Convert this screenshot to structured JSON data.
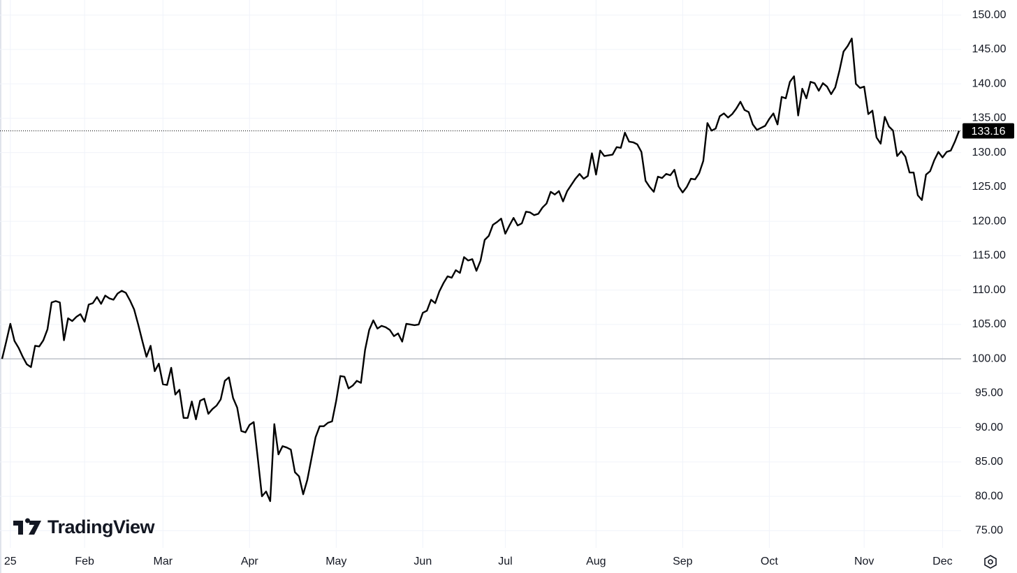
{
  "chart_data": {
    "type": "line",
    "watermark": "TradingView",
    "categories": [
      null,
      null,
      "25",
      null,
      null,
      null,
      null,
      null,
      null,
      null,
      null,
      null,
      null,
      null,
      null,
      null,
      null,
      null,
      null,
      null,
      "Feb",
      null,
      null,
      null,
      null,
      null,
      null,
      null,
      null,
      null,
      null,
      null,
      null,
      null,
      null,
      null,
      null,
      null,
      null,
      "Mar",
      null,
      null,
      null,
      null,
      null,
      null,
      null,
      null,
      null,
      null,
      null,
      null,
      null,
      null,
      null,
      null,
      null,
      null,
      null,
      null,
      "Apr",
      null,
      null,
      null,
      null,
      null,
      null,
      null,
      null,
      null,
      null,
      null,
      null,
      null,
      null,
      null,
      null,
      null,
      null,
      null,
      null,
      "May",
      null,
      null,
      null,
      null,
      null,
      null,
      null,
      null,
      null,
      null,
      null,
      null,
      null,
      null,
      null,
      null,
      null,
      null,
      null,
      null,
      "Jun",
      null,
      null,
      null,
      null,
      null,
      null,
      null,
      null,
      null,
      null,
      null,
      null,
      null,
      null,
      null,
      null,
      null,
      null,
      null,
      "Jul",
      null,
      null,
      null,
      null,
      null,
      null,
      null,
      null,
      null,
      null,
      null,
      null,
      null,
      null,
      null,
      null,
      null,
      null,
      null,
      null,
      null,
      "Aug",
      null,
      null,
      null,
      null,
      null,
      null,
      null,
      null,
      null,
      null,
      null,
      null,
      null,
      null,
      null,
      null,
      null,
      null,
      null,
      null,
      "Sep",
      null,
      null,
      null,
      null,
      null,
      null,
      null,
      null,
      null,
      null,
      null,
      null,
      null,
      null,
      null,
      null,
      null,
      null,
      null,
      null,
      "Oct",
      null,
      null,
      null,
      null,
      null,
      null,
      null,
      null,
      null,
      null,
      null,
      null,
      null,
      null,
      null,
      null,
      null,
      null,
      null,
      null,
      null,
      null,
      "Nov",
      null,
      null,
      null,
      null,
      null,
      null,
      null,
      null,
      null,
      null,
      null,
      null,
      null,
      null,
      null,
      null,
      null,
      null,
      "Dec",
      null,
      null,
      null,
      null
    ],
    "series": [
      {
        "color": "#000000",
        "values": [
          100,
          102.5,
          105.1,
          102.6,
          101.6,
          100.3,
          99.2,
          98.8,
          101.9,
          101.8,
          102.7,
          104.3,
          108.2,
          108.4,
          108.2,
          102.7,
          105.9,
          105.5,
          106.1,
          106.5,
          105.4,
          107.9,
          108.1,
          109,
          108,
          109.2,
          108.8,
          108.6,
          109.5,
          109.9,
          109.6,
          108.5,
          107.2,
          105,
          102.6,
          100.3,
          101.9,
          98.2,
          99.3,
          96.3,
          96.2,
          98.7,
          94.8,
          95.5,
          91.4,
          91.4,
          93.8,
          91.2,
          93.9,
          94.2,
          92,
          92.7,
          93.2,
          94.1,
          96.8,
          97.3,
          94.3,
          92.9,
          89.5,
          89.3,
          90.4,
          90.8,
          85.5,
          80,
          80.7,
          79.3,
          90.5,
          86.1,
          87.3,
          87.1,
          86.8,
          83.5,
          82.9,
          80.3,
          82.4,
          85.5,
          88.6,
          90.2,
          90.2,
          90.7,
          90.9,
          93.9,
          97.5,
          97.4,
          95.7,
          96.1,
          96.8,
          96.5,
          101.3,
          104.2,
          105.6,
          104.4,
          104.8,
          104.6,
          104.2,
          103.3,
          103.7,
          102.5,
          105.1,
          105,
          104.9,
          105,
          106.7,
          107,
          108.6,
          108.1,
          109.8,
          111,
          112,
          111.8,
          112.9,
          112.5,
          114.8,
          114.3,
          114.5,
          112.8,
          114.3,
          117.3,
          117.9,
          119.5,
          119.9,
          120.4,
          118.2,
          119.4,
          120.5,
          119.4,
          119.7,
          121.4,
          121.3,
          120.9,
          121.1,
          122,
          122.6,
          124.3,
          123.9,
          124.4,
          122.9,
          124.4,
          125.3,
          126.2,
          126.9,
          126.2,
          126.6,
          129.9,
          126.8,
          130.3,
          129.5,
          129.6,
          129.7,
          130.8,
          130.7,
          132.9,
          131.6,
          131.5,
          131.2,
          130.1,
          125.9,
          125,
          124.3,
          126.5,
          126.3,
          126.9,
          126.7,
          127.5,
          125.1,
          124.2,
          125,
          126.2,
          126.1,
          127,
          128.8,
          134.3,
          133.2,
          133.5,
          135.3,
          135.7,
          135.1,
          135.6,
          136.4,
          137.4,
          136.2,
          135.9,
          134.1,
          133.3,
          133.6,
          133.9,
          134.9,
          135.7,
          134.1,
          138.1,
          137.9,
          140.3,
          141.1,
          135.4,
          139.3,
          137.9,
          140.3,
          140.1,
          139,
          140.1,
          139.6,
          138.5,
          139.5,
          141.9,
          144.7,
          145.5,
          146.6,
          140,
          139.4,
          139.6,
          135.6,
          136.1,
          132.2,
          131.3,
          135.2,
          133.8,
          133.2,
          129.5,
          130.2,
          129.4,
          127.1,
          127.1,
          123.8,
          123.1,
          126.8,
          127.3,
          128.9,
          130.1,
          129.3,
          130.1,
          130.3,
          131.6,
          133.16
        ]
      }
    ],
    "baseline": 100,
    "ylim": [
      72.5,
      152.2
    ],
    "yticks": [
      {
        "value": 75,
        "label": "75.00"
      },
      {
        "value": 80,
        "label": "80.00"
      },
      {
        "value": 85,
        "label": "85.00"
      },
      {
        "value": 90,
        "label": "90.00"
      },
      {
        "value": 95,
        "label": "95.00"
      },
      {
        "value": 100,
        "label": "100.00"
      },
      {
        "value": 105,
        "label": "105.00"
      },
      {
        "value": 110,
        "label": "110.00"
      },
      {
        "value": 115,
        "label": "115.00"
      },
      {
        "value": 120,
        "label": "120.00"
      },
      {
        "value": 125,
        "label": "125.00"
      },
      {
        "value": 130,
        "label": "130.00"
      },
      {
        "value": 135,
        "label": "135.00"
      },
      {
        "value": 140,
        "label": "140.00"
      },
      {
        "value": 145,
        "label": "145.00"
      },
      {
        "value": 150,
        "label": "150.00"
      }
    ],
    "grid": true
  }
}
